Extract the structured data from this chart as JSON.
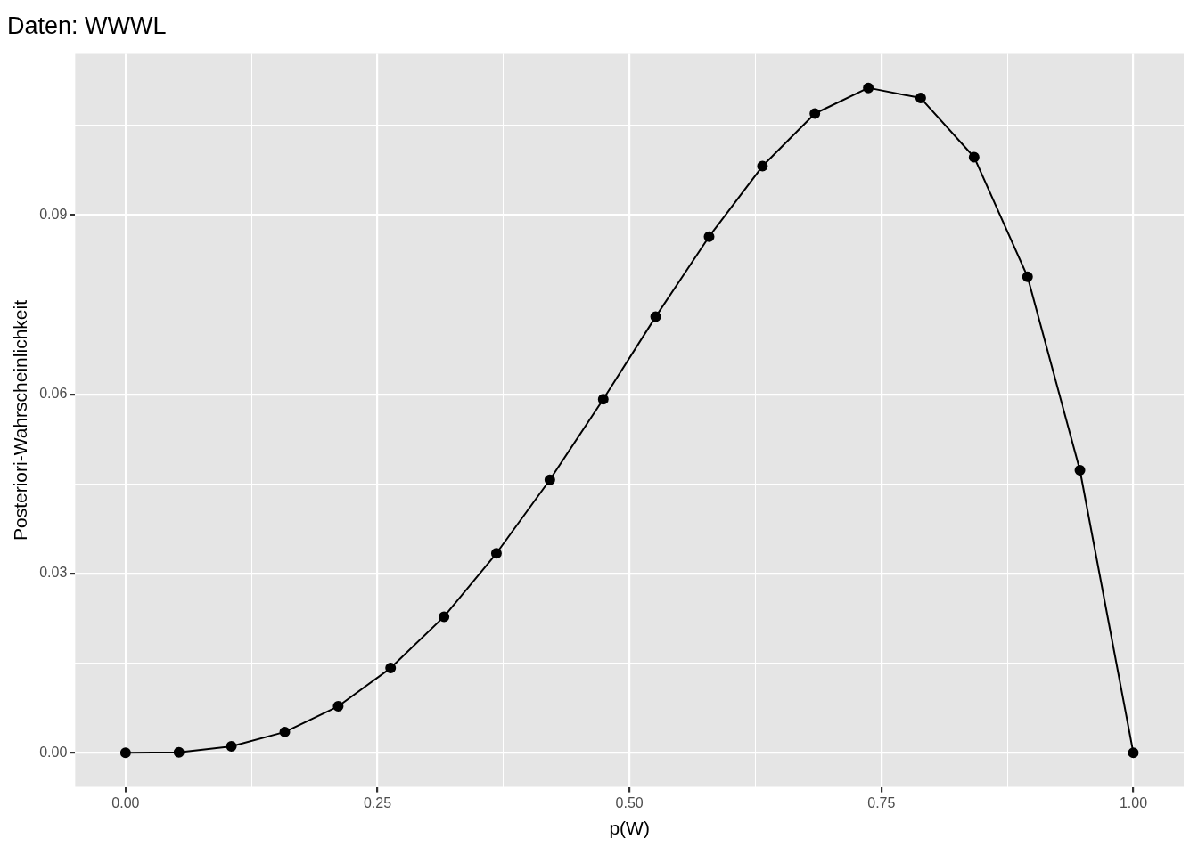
{
  "chart_data": {
    "type": "line",
    "title": "Daten: WWWL",
    "xlabel": "p(W)",
    "ylabel": "Posteriori-Wahrscheinlichkeit",
    "x": [
      0,
      0.053,
      0.105,
      0.158,
      0.211,
      0.263,
      0.316,
      0.368,
      0.421,
      0.474,
      0.526,
      0.579,
      0.632,
      0.684,
      0.737,
      0.789,
      0.842,
      0.895,
      0.947,
      1
    ],
    "series": [
      {
        "color": "#000000",
        "values": [
          0,
          0.0001,
          0.0011,
          0.0035,
          0.0078,
          0.0142,
          0.0228,
          0.0334,
          0.0457,
          0.0592,
          0.073,
          0.0864,
          0.0982,
          0.107,
          0.1113,
          0.1096,
          0.0997,
          0.0797,
          0.0473,
          0
        ]
      }
    ],
    "xlim": [
      -0.05,
      1.05
    ],
    "ylim": [
      -0.0057,
      0.117
    ],
    "xticks": [
      {
        "value": 0,
        "label": "0.00"
      },
      {
        "value": 0.125,
        "label": null
      },
      {
        "value": 0.25,
        "label": "0.25"
      },
      {
        "value": 0.375,
        "label": null
      },
      {
        "value": 0.5,
        "label": "0.50"
      },
      {
        "value": 0.625,
        "label": null
      },
      {
        "value": 0.75,
        "label": "0.75"
      },
      {
        "value": 0.875,
        "label": null
      },
      {
        "value": 1,
        "label": "1.00"
      }
    ],
    "yticks": [
      {
        "value": 0,
        "label": "0.00"
      },
      {
        "value": 0.015,
        "label": null
      },
      {
        "value": 0.03,
        "label": "0.03"
      },
      {
        "value": 0.045,
        "label": null
      },
      {
        "value": 0.06,
        "label": "0.06"
      },
      {
        "value": 0.075,
        "label": null
      },
      {
        "value": 0.09,
        "label": "0.09"
      },
      {
        "value": 0.105,
        "label": null
      }
    ],
    "grid": true,
    "legend": false,
    "marker": "circle",
    "line_style": "solid"
  }
}
